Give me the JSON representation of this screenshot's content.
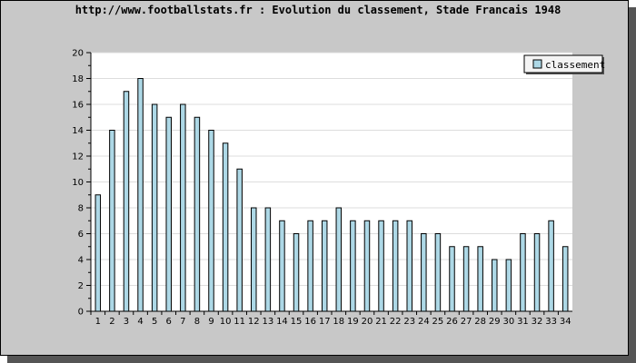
{
  "chart_data": {
    "type": "bar",
    "title": "http://www.footballstats.fr : Evolution du classement, Stade Francais 1948",
    "xlabel": "",
    "ylabel": "",
    "categories": [
      "1",
      "2",
      "3",
      "4",
      "5",
      "6",
      "7",
      "8",
      "9",
      "10",
      "11",
      "12",
      "13",
      "14",
      "15",
      "16",
      "17",
      "18",
      "19",
      "20",
      "21",
      "22",
      "23",
      "24",
      "25",
      "26",
      "27",
      "28",
      "29",
      "30",
      "31",
      "32",
      "33",
      "34"
    ],
    "series": [
      {
        "name": "classement",
        "values": [
          9,
          14,
          17,
          18,
          16,
          15,
          16,
          15,
          14,
          13,
          11,
          8,
          8,
          7,
          6,
          7,
          7,
          8,
          7,
          7,
          7,
          7,
          7,
          6,
          6,
          5,
          5,
          5,
          4,
          4,
          6,
          6,
          7,
          5
        ]
      }
    ],
    "ylim": [
      0,
      20
    ],
    "yticks": [
      "0",
      "2",
      "4",
      "6",
      "8",
      "10",
      "12",
      "14",
      "16",
      "18",
      "20"
    ],
    "grid": true,
    "legend_position": "top-right",
    "colors": {
      "bar_fill": "#add8e6",
      "bar_stroke": "#000000",
      "plot_background": "#ffffff",
      "frame_background": "#c8c8c8",
      "grid": "#dddddd"
    }
  }
}
